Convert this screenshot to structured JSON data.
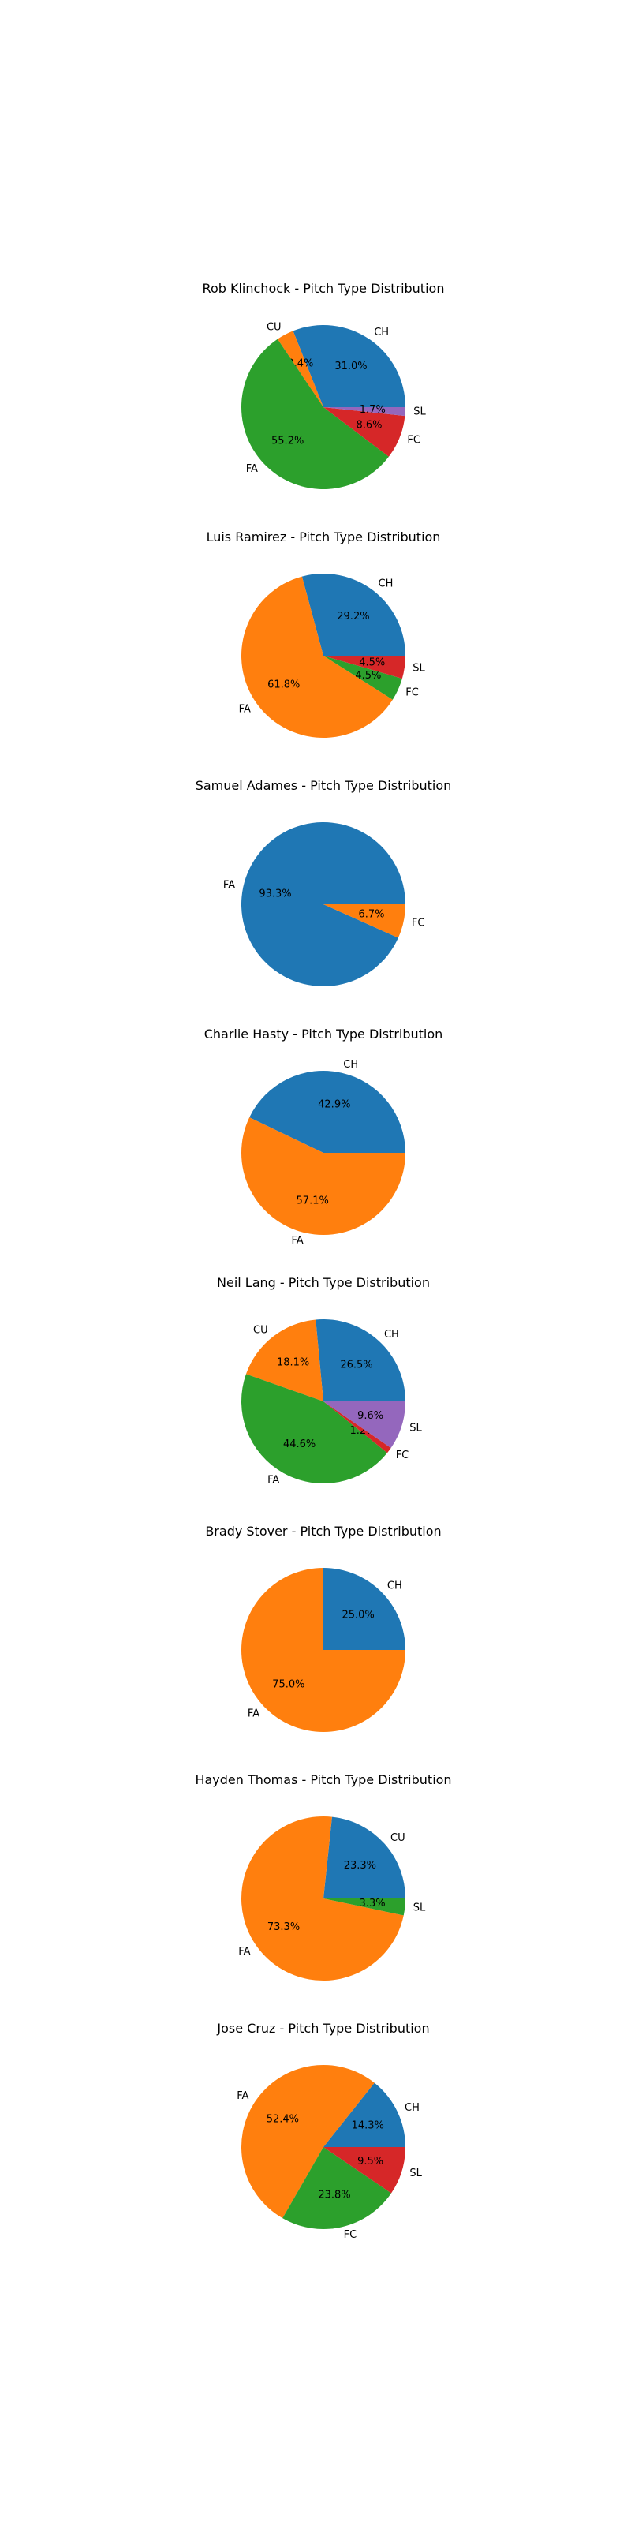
{
  "colors": {
    "CH": "#1f77b4",
    "CU": "#ff7f0e",
    "FA": "#2ca02c",
    "FC": "#d62728",
    "SL": "#9467bd"
  },
  "chart_data": [
    {
      "type": "pie",
      "title": "Rob Klinchock - Pitch Type Distribution",
      "slices": [
        {
          "label": "CH",
          "value": 31.0,
          "pct_label": "31.0%",
          "color": "#1f77b4"
        },
        {
          "label": "CU",
          "value": 3.4,
          "pct_label": "3.4%",
          "color": "#ff7f0e"
        },
        {
          "label": "FA",
          "value": 55.2,
          "pct_label": "55.2%",
          "color": "#2ca02c"
        },
        {
          "label": "FC",
          "value": 8.6,
          "pct_label": "8.6%",
          "color": "#d62728"
        },
        {
          "label": "SL",
          "value": 1.7,
          "pct_label": "1.7%",
          "color": "#9467bd"
        }
      ]
    },
    {
      "type": "pie",
      "title": "Luis Ramirez - Pitch Type Distribution",
      "slices": [
        {
          "label": "CH",
          "value": 29.2,
          "pct_label": "29.2%",
          "color": "#1f77b4"
        },
        {
          "label": "FA",
          "value": 61.8,
          "pct_label": "61.8%",
          "color": "#ff7f0e"
        },
        {
          "label": "FC",
          "value": 4.5,
          "pct_label": "4.5%",
          "color": "#2ca02c"
        },
        {
          "label": "SL",
          "value": 4.5,
          "pct_label": "4.5%",
          "color": "#d62728"
        }
      ]
    },
    {
      "type": "pie",
      "title": "Samuel Adames - Pitch Type Distribution",
      "slices": [
        {
          "label": "FA",
          "value": 93.3,
          "pct_label": "93.3%",
          "color": "#1f77b4"
        },
        {
          "label": "FC",
          "value": 6.7,
          "pct_label": "6.7%",
          "color": "#ff7f0e"
        }
      ]
    },
    {
      "type": "pie",
      "title": "Charlie Hasty - Pitch Type Distribution",
      "slices": [
        {
          "label": "CH",
          "value": 42.9,
          "pct_label": "42.9%",
          "color": "#1f77b4"
        },
        {
          "label": "FA",
          "value": 57.1,
          "pct_label": "57.1%",
          "color": "#ff7f0e"
        }
      ]
    },
    {
      "type": "pie",
      "title": "Neil Lang - Pitch Type Distribution",
      "slices": [
        {
          "label": "CH",
          "value": 26.5,
          "pct_label": "26.5%",
          "color": "#1f77b4"
        },
        {
          "label": "CU",
          "value": 18.1,
          "pct_label": "18.1%",
          "color": "#ff7f0e"
        },
        {
          "label": "FA",
          "value": 44.6,
          "pct_label": "44.6%",
          "color": "#2ca02c"
        },
        {
          "label": "FC",
          "value": 1.2,
          "pct_label": "1.2%",
          "color": "#d62728"
        },
        {
          "label": "SL",
          "value": 9.6,
          "pct_label": "9.6%",
          "color": "#9467bd"
        }
      ]
    },
    {
      "type": "pie",
      "title": "Brady Stover - Pitch Type Distribution",
      "slices": [
        {
          "label": "CH",
          "value": 25.0,
          "pct_label": "25.0%",
          "color": "#1f77b4"
        },
        {
          "label": "FA",
          "value": 75.0,
          "pct_label": "75.0%",
          "color": "#ff7f0e"
        }
      ]
    },
    {
      "type": "pie",
      "title": "Hayden Thomas - Pitch Type Distribution",
      "slices": [
        {
          "label": "CU",
          "value": 23.3,
          "pct_label": "23.3%",
          "color": "#1f77b4"
        },
        {
          "label": "FA",
          "value": 73.3,
          "pct_label": "73.3%",
          "color": "#ff7f0e"
        },
        {
          "label": "SL",
          "value": 3.3,
          "pct_label": "3.3%",
          "color": "#2ca02c"
        }
      ]
    },
    {
      "type": "pie",
      "title": "Jose Cruz - Pitch Type Distribution",
      "slices": [
        {
          "label": "CH",
          "value": 14.3,
          "pct_label": "14.3%",
          "color": "#1f77b4"
        },
        {
          "label": "FA",
          "value": 52.4,
          "pct_label": "52.4%",
          "color": "#ff7f0e"
        },
        {
          "label": "FC",
          "value": 23.8,
          "pct_label": "23.8%",
          "color": "#2ca02c"
        },
        {
          "label": "SL",
          "value": 9.5,
          "pct_label": "9.5%",
          "color": "#d62728"
        }
      ]
    }
  ]
}
